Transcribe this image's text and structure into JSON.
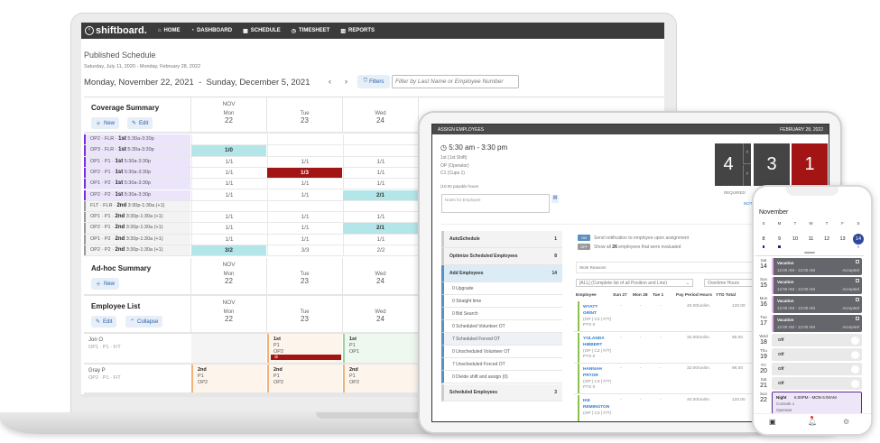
{
  "laptop": {
    "logo": "shiftboard.",
    "nav": [
      {
        "icon": "home-icon",
        "label": "HOME"
      },
      {
        "icon": "dashboard-icon",
        "label": "DASHBOARD"
      },
      {
        "icon": "calendar-icon",
        "label": "SCHEDULE"
      },
      {
        "icon": "clock-icon",
        "label": "TIMESHEET"
      },
      {
        "icon": "bar-chart-icon",
        "label": "REPORTS"
      }
    ],
    "title": "Published Schedule",
    "range": "Saturday, July 11, 2020 - Monday, February 28, 2022",
    "week": "Monday, November 22, 2021  -  Sunday, December 5, 2021",
    "prev": "‹",
    "next": "›",
    "filters_label": "Filters",
    "filter_placeholder": "Filter by Last Name or Employee Number",
    "month": "NOV",
    "days": [
      {
        "d": "Mon",
        "n": "22"
      },
      {
        "d": "Tue",
        "n": "23"
      },
      {
        "d": "Wed",
        "n": "24"
      }
    ],
    "coverage": {
      "title": "Coverage Summary",
      "new_label": "New",
      "edit_label": "Edit",
      "rows": [
        {
          "code": "OP2 · FLR · ",
          "shift": "1st",
          "time": "5:30a-3:30p",
          "kind": "p",
          "cells": [
            {
              "v": "",
              "s": ""
            },
            {
              "v": "",
              "s": ""
            },
            {
              "v": "",
              "s": ""
            }
          ]
        },
        {
          "code": "OP3 · FLR · ",
          "shift": "1st",
          "time": "5:30a-3:30p",
          "kind": "p",
          "cells": [
            {
              "v": "1/0",
              "s": "cyan"
            },
            {
              "v": "",
              "s": ""
            },
            {
              "v": "",
              "s": ""
            }
          ]
        },
        {
          "code": "OP1 · P1 · ",
          "shift": "1st",
          "time": "5:30a-3:30p",
          "kind": "p",
          "cells": [
            {
              "v": "1/1",
              "s": ""
            },
            {
              "v": "1/1",
              "s": ""
            },
            {
              "v": "1/1",
              "s": ""
            }
          ]
        },
        {
          "code": "OP2 · P1 · ",
          "shift": "1st",
          "time": "5:30a-3:30p",
          "kind": "p",
          "cells": [
            {
              "v": "1/1",
              "s": ""
            },
            {
              "v": "1/3",
              "s": "red"
            },
            {
              "v": "1/1",
              "s": ""
            }
          ]
        },
        {
          "code": "OP1 · P2 · ",
          "shift": "1st",
          "time": "5:30a-3:30p",
          "kind": "p",
          "cells": [
            {
              "v": "1/1",
              "s": ""
            },
            {
              "v": "1/1",
              "s": ""
            },
            {
              "v": "1/1",
              "s": ""
            }
          ]
        },
        {
          "code": "OP2 · P2 · ",
          "shift": "1st",
          "time": "5:30a-3:30p",
          "kind": "p",
          "cells": [
            {
              "v": "1/1",
              "s": ""
            },
            {
              "v": "1/1",
              "s": ""
            },
            {
              "v": "2/1",
              "s": "cyan"
            }
          ]
        },
        {
          "code": "FLT · FLR · ",
          "shift": "2nd",
          "time": "3:30p-1:30a (+1)",
          "kind": "g",
          "cells": [
            {
              "v": "",
              "s": ""
            },
            {
              "v": "",
              "s": ""
            },
            {
              "v": "",
              "s": ""
            }
          ]
        },
        {
          "code": "OP1 · P1 · ",
          "shift": "2nd",
          "time": "3:30p-1:30a (+1)",
          "kind": "g",
          "cells": [
            {
              "v": "1/1",
              "s": ""
            },
            {
              "v": "1/1",
              "s": ""
            },
            {
              "v": "1/1",
              "s": ""
            }
          ]
        },
        {
          "code": "OP2 · P1 · ",
          "shift": "2nd",
          "time": "3:30p-1:30a (+1)",
          "kind": "g",
          "cells": [
            {
              "v": "1/1",
              "s": ""
            },
            {
              "v": "1/1",
              "s": ""
            },
            {
              "v": "2/1",
              "s": "cyan"
            }
          ]
        },
        {
          "code": "OP1 · P2 · ",
          "shift": "2nd",
          "time": "3:30p-1:30a (+1)",
          "kind": "g",
          "cells": [
            {
              "v": "1/1",
              "s": ""
            },
            {
              "v": "1/1",
              "s": ""
            },
            {
              "v": "1/1",
              "s": ""
            }
          ]
        },
        {
          "code": "OP2 · P2 · ",
          "shift": "2nd",
          "time": "3:30p-1:30a (+1)",
          "kind": "g",
          "cells": [
            {
              "v": "3/2",
              "s": "cyan"
            },
            {
              "v": "3/3",
              "s": ""
            },
            {
              "v": "2/2",
              "s": ""
            }
          ]
        }
      ]
    },
    "adhoc": {
      "title": "Ad-hoc Summary",
      "new_label": "New"
    },
    "employees": {
      "title": "Employee List",
      "edit_label": "Edit",
      "collapse_label": "Collapse",
      "rows": [
        {
          "name": "Jon O",
          "sub": "OP1 · P1 · F/T",
          "shifts": [
            {
              "kind": "e",
              "lines": []
            },
            {
              "kind": "o",
              "lines": [
                "1st",
                "P1",
                "OP2"
              ],
              "alert": true
            },
            {
              "kind": "gr",
              "lines": [
                "1st",
                "P1",
                "OP1"
              ]
            }
          ]
        },
        {
          "name": "Gray P",
          "sub": "OP2 · P1 · F/T",
          "shifts": [
            {
              "kind": "o",
              "lines": [
                "2nd",
                "P1",
                "OP2"
              ]
            },
            {
              "kind": "o",
              "lines": [
                "2nd",
                "P1",
                "OP2"
              ]
            },
            {
              "kind": "o",
              "lines": [
                "2nd",
                "P1",
                "OP2"
              ]
            }
          ]
        }
      ]
    }
  },
  "tablet": {
    "header_title": "ASSIGN EMPLOYEES",
    "header_date": "FEBRUARY 28, 2022",
    "time": "5:30 am - 3:30 pm",
    "details": [
      "1st (1st Shift)",
      "OP (Operator)",
      "C1 (Cups 1)"
    ],
    "payable": "(10.00 payable hours",
    "notes_placeholder": "Notes for Employee",
    "counts": {
      "required": "4",
      "scheduled": "3",
      "open": "1"
    },
    "required_label": "REQUIRED",
    "not_label": "NOT",
    "colors": {
      "dark": "#444444",
      "red": "#a31515"
    },
    "left_panel": [
      {
        "label": "AutoSchedule",
        "count": "1",
        "type": "main"
      },
      {
        "label": "Optimize Scheduled Employees",
        "count": "8",
        "type": "main"
      },
      {
        "label": "Add Employees",
        "count": "14",
        "type": "active"
      },
      {
        "label": "0 Upgrade",
        "type": "sub"
      },
      {
        "label": "0 Straight time",
        "type": "sub"
      },
      {
        "label": "0 Bid Search",
        "type": "sub"
      },
      {
        "label": "0 Scheduled Volunteer OT",
        "type": "sub"
      },
      {
        "label": "7 Scheduled Forced OT",
        "type": "sub hl"
      },
      {
        "label": "0 Unscheduled Volunteer OT",
        "type": "sub"
      },
      {
        "label": "7 Unscheduled Forced OT",
        "type": "sub"
      },
      {
        "label": "0 Divide shift and assign (0)",
        "type": "sub"
      },
      {
        "label": "Scheduled Employees",
        "count": "3",
        "type": "main"
      }
    ],
    "toggle_on": {
      "state": "ON",
      "text": "Send notification to employee upon assignment"
    },
    "toggle_off": {
      "state": "OFF",
      "text_pre": "Show all ",
      "count": "26",
      "text_post": " employees that were evaluated"
    },
    "work_reasons_placeholder": "Work Reasons",
    "position_select": "[ALL] (Complete list of all Position and Line)",
    "overtime_select": "Overtime Hours",
    "columns": [
      "Employee",
      "Sun 27",
      "Mon 28",
      "Tue 1",
      "Pay Period Hours",
      "YTD Total",
      "OT"
    ],
    "rows": [
      {
        "first": "WYATT",
        "last": "GRINT",
        "tags": "(OP | C2 | F/T)",
        "pts": "PTS 0",
        "sun": "-",
        "mon": "-",
        "tue": "-",
        "pay": "40.00/unlim.",
        "ytd": "120.00",
        "ot": "0.0"
      },
      {
        "first": "YOLANDA",
        "last": "HIBBERT",
        "tags": "(OP | C2 | F/T)",
        "pts": "PTS 0",
        "sun": "-",
        "mon": "-",
        "tue": "-",
        "pay": "32.00/unlim.",
        "ytd": "96.00",
        "ot": "0.0"
      },
      {
        "first": "HANNAH",
        "last": "PRYOR",
        "tags": "(OP | C3 | F/T)",
        "pts": "PTS 0",
        "sun": "-",
        "mon": "-",
        "tue": "-",
        "pay": "32.00/unlim.",
        "ytd": "96.00",
        "ot": "0.0"
      },
      {
        "first": "IKE",
        "last": "REMINGTON",
        "tags": "(OP | C3 | F/T)",
        "pts": "",
        "sun": "-",
        "mon": "-",
        "tue": "-",
        "pay": "40.00/unlim.",
        "ytd": "120.00",
        "ot": "0.0"
      }
    ]
  },
  "phone": {
    "month": "November",
    "weekdays": [
      "S",
      "M",
      "T",
      "W",
      "T",
      "F",
      "S"
    ],
    "dates": [
      {
        "n": "8",
        "dot": true
      },
      {
        "n": "9",
        "dot": true
      },
      {
        "n": "10"
      },
      {
        "n": "11"
      },
      {
        "n": "12"
      },
      {
        "n": "13"
      },
      {
        "n": "14",
        "selected": true
      }
    ],
    "accent": "#2f4a9a",
    "events": [
      {
        "dow": "Sat",
        "day": "14",
        "type": "vac",
        "title": "Vacation",
        "time": "12:00 AM - 12:00 AM",
        "status": "Accepted"
      },
      {
        "dow": "Sun",
        "day": "15",
        "type": "vac",
        "title": "Vacation",
        "time": "12:00 AM - 12:00 AM",
        "status": "Accepted"
      },
      {
        "dow": "Mon",
        "day": "16",
        "type": "vac",
        "title": "Vacation",
        "time": "12:00 AM - 12:00 AM",
        "status": "Accepted"
      },
      {
        "dow": "Tue",
        "day": "17",
        "type": "vac",
        "title": "Vacation",
        "time": "12:00 AM - 12:00 AM",
        "status": "Accepted"
      },
      {
        "dow": "Wed",
        "day": "18",
        "type": "off",
        "title": "Off"
      },
      {
        "dow": "Thu",
        "day": "19",
        "type": "off",
        "title": "Off"
      },
      {
        "dow": "Fri",
        "day": "20",
        "type": "off",
        "title": "Off"
      },
      {
        "dow": "Sat",
        "day": "21",
        "type": "off",
        "title": "Off"
      },
      {
        "dow": "Sun",
        "day": "22",
        "type": "night",
        "title": "Night",
        "time": "6:00PM - MON 6:00AM",
        "line2": "Console 1",
        "line3": "Operator"
      }
    ],
    "tabs": [
      "calendar-icon",
      "bell-icon",
      "settings-icon"
    ]
  }
}
